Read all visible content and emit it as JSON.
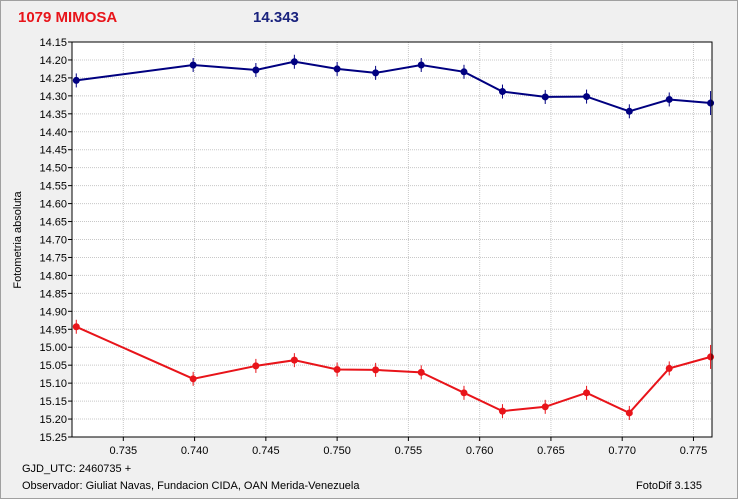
{
  "header": {
    "star_name": "1079 MIMOSA",
    "magnitude": "14.343"
  },
  "footer": {
    "gjd": "GJD_UTC: 2460735 +",
    "observer": "Observador: Giuliat Navas, Fundacion CIDA, OAN  Merida-Venezuela",
    "software": "FotoDif 3.135"
  },
  "colors": {
    "series_blue": "#000080",
    "series_red": "#e8141a",
    "title_red": "#e8141a",
    "title_blue": "#1a237e"
  },
  "chart_data": {
    "type": "line",
    "title": "",
    "xlabel": "",
    "ylabel": "Fotometria absoluta",
    "xlim": [
      0.7314,
      0.7763
    ],
    "ylim": [
      14.15,
      15.25
    ],
    "y_inverted": true,
    "grid": true,
    "x_ticks": [
      "0.735",
      "0.740",
      "0.745",
      "0.750",
      "0.755",
      "0.760",
      "0.765",
      "0.770",
      "0.775"
    ],
    "y_ticks": [
      "14.15",
      "14.20",
      "14.25",
      "14.30",
      "14.35",
      "14.40",
      "14.45",
      "14.50",
      "14.55",
      "14.60",
      "14.65",
      "14.70",
      "14.75",
      "14.80",
      "14.85",
      "14.90",
      "14.95",
      "15.00",
      "15.05",
      "15.10",
      "15.15",
      "15.20",
      "15.25"
    ],
    "series": [
      {
        "color": "#000080",
        "x": [
          0.7317,
          0.7399,
          0.7443,
          0.747,
          0.75,
          0.7527,
          0.7559,
          0.7589,
          0.7616,
          0.7646,
          0.7675,
          0.7705,
          0.7733,
          0.7762
        ],
        "y": [
          14.257,
          14.214,
          14.228,
          14.205,
          14.225,
          14.236,
          14.214,
          14.233,
          14.288,
          14.303,
          14.302,
          14.343,
          14.31,
          14.32
        ]
      },
      {
        "color": "#e8141a",
        "x": [
          0.7317,
          0.7399,
          0.7443,
          0.747,
          0.75,
          0.7527,
          0.7559,
          0.7589,
          0.7616,
          0.7646,
          0.7675,
          0.7705,
          0.7733,
          0.7762
        ],
        "y": [
          14.943,
          15.088,
          15.052,
          15.036,
          15.062,
          15.063,
          15.07,
          15.127,
          15.178,
          15.166,
          15.127,
          15.183,
          15.059,
          15.027
        ]
      }
    ]
  }
}
